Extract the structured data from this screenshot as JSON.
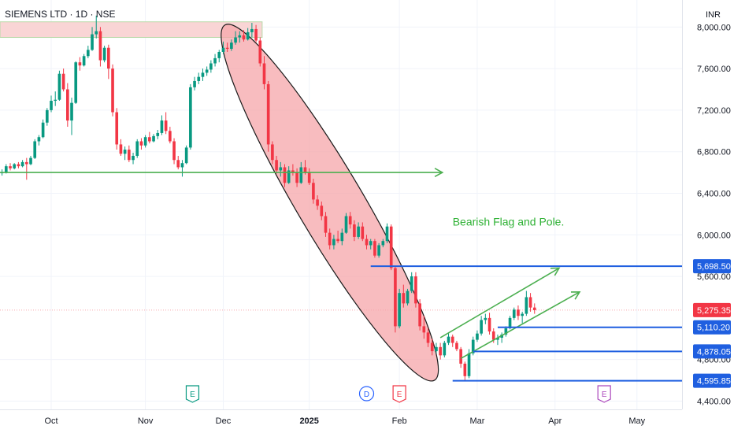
{
  "header": {
    "title": "SIEMENS LTD · 1D · NSE",
    "currency": "INR"
  },
  "chart_data": {
    "type": "candlestick",
    "title": "SIEMENS LTD · 1D · NSE",
    "currency": "INR",
    "ylim": [
      4320,
      8260
    ],
    "y_ticks": [
      {
        "value": 8000,
        "label": "8,000.00"
      },
      {
        "value": 7600,
        "label": "7,600.00"
      },
      {
        "value": 7200,
        "label": "7,200.00"
      },
      {
        "value": 6800,
        "label": "6,800.00"
      },
      {
        "value": 6400,
        "label": "6,400.00"
      },
      {
        "value": 6000,
        "label": "6,000.00"
      },
      {
        "value": 5600,
        "label": "5,600.00"
      },
      {
        "value": 4800,
        "label": "4,800.00"
      },
      {
        "value": 4400,
        "label": "4,400.00"
      }
    ],
    "x_ticks": [
      {
        "day": 12,
        "label": "Oct",
        "bold": false
      },
      {
        "day": 35,
        "label": "Nov",
        "bold": false
      },
      {
        "day": 54,
        "label": "Dec",
        "bold": false
      },
      {
        "day": 75,
        "label": "2025",
        "bold": true
      },
      {
        "day": 97,
        "label": "Feb",
        "bold": false
      },
      {
        "day": 116,
        "label": "Mar",
        "bold": false
      },
      {
        "day": 135,
        "label": "Apr",
        "bold": false
      },
      {
        "day": 155,
        "label": "May",
        "bold": false
      }
    ],
    "x_domain": [
      -0.5,
      166
    ],
    "candles": [
      [
        6600,
        6630,
        6570,
        6600
      ],
      [
        6600,
        6680,
        6590,
        6660
      ],
      [
        6660,
        6690,
        6620,
        6640
      ],
      [
        6640,
        6690,
        6630,
        6680
      ],
      [
        6680,
        6700,
        6640,
        6660
      ],
      [
        6660,
        6720,
        6650,
        6700
      ],
      [
        6700,
        6740,
        6530,
        6680
      ],
      [
        6680,
        6760,
        6670,
        6740
      ],
      [
        6740,
        6920,
        6730,
        6900
      ],
      [
        6900,
        6960,
        6860,
        6940
      ],
      [
        6940,
        7110,
        6930,
        7080
      ],
      [
        7080,
        7220,
        7050,
        7200
      ],
      [
        7200,
        7340,
        7180,
        7290
      ],
      [
        7290,
        7380,
        7240,
        7300
      ],
      [
        7300,
        7580,
        7290,
        7550
      ],
      [
        7550,
        7600,
        7380,
        7400
      ],
      [
        7400,
        7460,
        7040,
        7100
      ],
      [
        7100,
        7320,
        6960,
        7270
      ],
      [
        7270,
        7670,
        7260,
        7660
      ],
      [
        7660,
        7710,
        7580,
        7630
      ],
      [
        7630,
        7740,
        7620,
        7720
      ],
      [
        7720,
        7820,
        7700,
        7780
      ],
      [
        7780,
        8000,
        7770,
        7930
      ],
      [
        7930,
        8110,
        7890,
        7960
      ],
      [
        7960,
        8000,
        7620,
        7680
      ],
      [
        7680,
        7820,
        7660,
        7800
      ],
      [
        7800,
        7830,
        7500,
        7600
      ],
      [
        7600,
        7640,
        7140,
        7180
      ],
      [
        7180,
        7220,
        6820,
        6870
      ],
      [
        6870,
        6920,
        6760,
        6780
      ],
      [
        6780,
        6850,
        6720,
        6820
      ],
      [
        6820,
        6860,
        6700,
        6720
      ],
      [
        6720,
        6790,
        6680,
        6760
      ],
      [
        6760,
        6920,
        6740,
        6900
      ],
      [
        6900,
        6930,
        6820,
        6860
      ],
      [
        6860,
        6960,
        6840,
        6940
      ],
      [
        6940,
        6990,
        6880,
        6900
      ],
      [
        6900,
        6970,
        6890,
        6950
      ],
      [
        6950,
        7010,
        6920,
        6980
      ],
      [
        6980,
        7150,
        6960,
        7100
      ],
      [
        7100,
        7180,
        6970,
        7000
      ],
      [
        7000,
        7040,
        6880,
        6900
      ],
      [
        6900,
        6930,
        6680,
        6720
      ],
      [
        6720,
        6760,
        6630,
        6650
      ],
      [
        6650,
        6720,
        6560,
        6690
      ],
      [
        6690,
        6860,
        6680,
        6840
      ],
      [
        6840,
        7450,
        6820,
        7420
      ],
      [
        7420,
        7520,
        7390,
        7480
      ],
      [
        7480,
        7560,
        7450,
        7520
      ],
      [
        7520,
        7600,
        7480,
        7560
      ],
      [
        7560,
        7620,
        7530,
        7590
      ],
      [
        7590,
        7680,
        7560,
        7650
      ],
      [
        7650,
        7740,
        7620,
        7700
      ],
      [
        7700,
        7780,
        7660,
        7760
      ],
      [
        7760,
        7860,
        7740,
        7800
      ],
      [
        7800,
        7850,
        7760,
        7790
      ],
      [
        7790,
        7880,
        7770,
        7850
      ],
      [
        7850,
        7960,
        7830,
        7900
      ],
      [
        7900,
        7960,
        7850,
        7920
      ],
      [
        7920,
        7970,
        7860,
        7880
      ],
      [
        7880,
        7990,
        7870,
        7950
      ],
      [
        7950,
        8040,
        7900,
        7980
      ],
      [
        7980,
        8020,
        7850,
        7870
      ],
      [
        7870,
        7900,
        7620,
        7650
      ],
      [
        7650,
        7720,
        7400,
        7450
      ],
      [
        7450,
        7480,
        6800,
        6870
      ],
      [
        6870,
        6900,
        6680,
        6720
      ],
      [
        6720,
        6760,
        6590,
        6620
      ],
      [
        6620,
        6700,
        6560,
        6650
      ],
      [
        6650,
        6680,
        6460,
        6500
      ],
      [
        6500,
        6660,
        6490,
        6620
      ],
      [
        6620,
        6680,
        6570,
        6600
      ],
      [
        6600,
        6640,
        6460,
        6500
      ],
      [
        6500,
        6700,
        6490,
        6650
      ],
      [
        6650,
        6720,
        6580,
        6600
      ],
      [
        6600,
        6640,
        6480,
        6500
      ],
      [
        6500,
        6540,
        6300,
        6340
      ],
      [
        6340,
        6380,
        6240,
        6280
      ],
      [
        6280,
        6320,
        6140,
        6180
      ],
      [
        6180,
        6220,
        5980,
        6020
      ],
      [
        6020,
        6060,
        5860,
        5900
      ],
      [
        5900,
        6000,
        5860,
        5960
      ],
      [
        5960,
        6040,
        5920,
        5940
      ],
      [
        5940,
        6060,
        5900,
        6020
      ],
      [
        6020,
        6210,
        6010,
        6180
      ],
      [
        6180,
        6220,
        6060,
        6100
      ],
      [
        6100,
        6140,
        5940,
        5980
      ],
      [
        5980,
        6120,
        5960,
        6080
      ],
      [
        6080,
        6120,
        5940,
        5960
      ],
      [
        5960,
        6000,
        5860,
        5900
      ],
      [
        5900,
        5960,
        5860,
        5940
      ],
      [
        5940,
        5960,
        5780,
        5800
      ],
      [
        5800,
        5920,
        5780,
        5900
      ],
      [
        5900,
        5960,
        5880,
        5940
      ],
      [
        5940,
        6110,
        5920,
        6080
      ],
      [
        6080,
        6100,
        5660,
        5680
      ],
      [
        5680,
        5700,
        5060,
        5120
      ],
      [
        5120,
        5480,
        5100,
        5440
      ],
      [
        5440,
        5520,
        5300,
        5340
      ],
      [
        5340,
        5480,
        5320,
        5460
      ],
      [
        5460,
        5640,
        5440,
        5600
      ],
      [
        5600,
        5640,
        5300,
        5340
      ],
      [
        5340,
        5380,
        5080,
        5120
      ],
      [
        5120,
        5220,
        5000,
        5060
      ],
      [
        5060,
        5100,
        4920,
        4960
      ],
      [
        4960,
        5000,
        4840,
        4880
      ],
      [
        4880,
        4960,
        4860,
        4920
      ],
      [
        4920,
        4960,
        4800,
        4840
      ],
      [
        4840,
        4980,
        4820,
        4960
      ],
      [
        4960,
        5060,
        4940,
        5020
      ],
      [
        5020,
        5040,
        4920,
        4960
      ],
      [
        4960,
        4980,
        4880,
        4900
      ],
      [
        4900,
        4920,
        4720,
        4760
      ],
      [
        4760,
        4780,
        4590,
        4640
      ],
      [
        4640,
        4900,
        4620,
        4860
      ],
      [
        4860,
        5020,
        4840,
        4990
      ],
      [
        4990,
        5080,
        4970,
        5050
      ],
      [
        5050,
        5220,
        5030,
        5180
      ],
      [
        5180,
        5240,
        5140,
        5200
      ],
      [
        5200,
        5250,
        5040,
        5070
      ],
      [
        5070,
        5100,
        4960,
        4990
      ],
      [
        4990,
        5040,
        4940,
        5010
      ],
      [
        5010,
        5060,
        4960,
        5040
      ],
      [
        5040,
        5120,
        5020,
        5100
      ],
      [
        5100,
        5220,
        5090,
        5200
      ],
      [
        5200,
        5300,
        5180,
        5280
      ],
      [
        5280,
        5320,
        5180,
        5220
      ],
      [
        5220,
        5260,
        5150,
        5240
      ],
      [
        5240,
        5460,
        5220,
        5400
      ],
      [
        5400,
        5440,
        5260,
        5300
      ],
      [
        5300,
        5340,
        5240,
        5275
      ]
    ],
    "resistance_zone": {
      "x0": -0.5,
      "x1": 63.5,
      "low": 7900,
      "high": 8050
    },
    "support_line": {
      "x0": -0.5,
      "x1": 107.5,
      "value": 6600
    },
    "pole": {
      "start": [
        55,
        7980
      ],
      "end": [
        105,
        4640
      ]
    },
    "flag_upper": {
      "start": [
        107,
        5010
      ],
      "end": [
        136,
        5680
      ]
    },
    "flag_lower": {
      "start": [
        112,
        4810
      ],
      "end": [
        141,
        5450
      ]
    },
    "annotation": "Bearish Flag and Pole.",
    "levels": [
      {
        "value": 5698.5,
        "label": "5,698.50",
        "x0": 90
      },
      {
        "value": 5110.2,
        "label": "5,110.20",
        "x0": 121
      },
      {
        "value": 4878.05,
        "label": "4,878.05",
        "x0": 115
      },
      {
        "value": 4595.85,
        "label": "4,595.85",
        "x0": 110
      }
    ],
    "last_price": {
      "value": 5275.35,
      "label": "5,275.35"
    },
    "events": [
      {
        "day": 46.5,
        "label": "E",
        "color": "#089981",
        "shape": "flag"
      },
      {
        "day": 89,
        "label": "D",
        "color": "#2962ff",
        "shape": "circle"
      },
      {
        "day": 97,
        "label": "E",
        "color": "#f23645",
        "shape": "flag"
      },
      {
        "day": 147,
        "label": "E",
        "color": "#ab47bc",
        "shape": "flag"
      }
    ],
    "colors": {
      "up": "#089981",
      "down": "#f23645",
      "level": "#1f5fe0",
      "trend": "#4caf50",
      "zone_fill": "#f9d5d5",
      "pole_fill": "#f6a5a9",
      "annotation": "#2eb134",
      "grid": "#f0f3fa"
    }
  }
}
